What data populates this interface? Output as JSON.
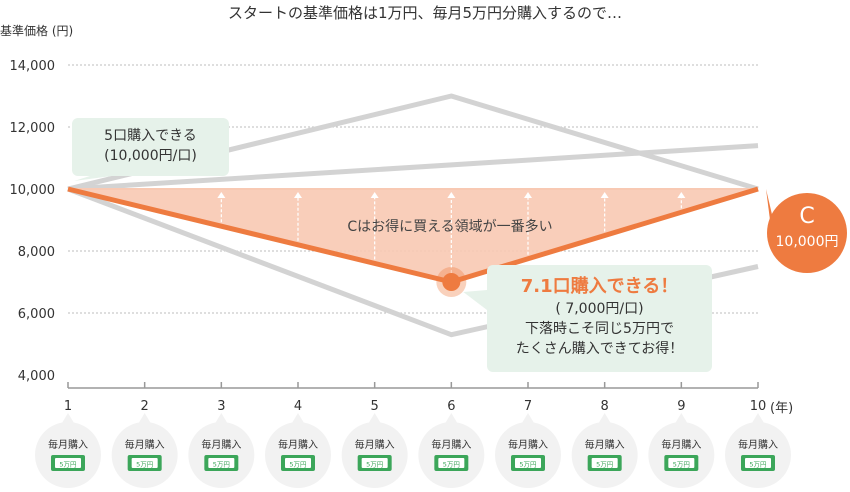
{
  "title": "スタートの基準価格は1万円、毎月5万円分購入するので…",
  "y_axis_label": "基準価格 (円)",
  "x_unit_label": "(年)",
  "area_label": "Cはお得に買える領域が一番多い",
  "callout_start": {
    "line1": "5口購入できる",
    "line2": "(10,000円/口)"
  },
  "callout_low": {
    "headline": "7.1口購入できる！",
    "line1": "( 7,000円/口)",
    "line2": "下落時こそ同じ5万円で",
    "line3": "たくさん購入できてお得！"
  },
  "badge": {
    "letter": "C",
    "price": "10,000円"
  },
  "purchase_badge": {
    "label": "毎月購入",
    "note": "5万円"
  },
  "colors": {
    "accent": "#ee7b40",
    "area_fill": "#f8c9b3",
    "gray_line": "#d3d3d3",
    "callout_bg": "#e6f2ea",
    "money_green": "#3ca65a"
  },
  "chart_data": {
    "type": "line",
    "x": [
      1,
      2,
      3,
      4,
      5,
      6,
      7,
      8,
      9,
      10
    ],
    "y_ticks": [
      "14,000",
      "12,000",
      "10,000",
      "8,000",
      "6,000",
      "4,000"
    ],
    "x_ticks": [
      "1",
      "2",
      "3",
      "4",
      "5",
      "6",
      "7",
      "8",
      "9",
      "10"
    ],
    "ylim": [
      4000,
      14000
    ],
    "xlim": [
      1,
      10
    ],
    "grid": true,
    "series": [
      {
        "id": "C",
        "role": "highlight",
        "x": [
          1,
          6,
          10
        ],
        "y": [
          10000,
          7000,
          10000
        ]
      },
      {
        "id": "up-then-down",
        "role": "comparison",
        "x": [
          1,
          6,
          10
        ],
        "y": [
          10000,
          13000,
          10000
        ]
      },
      {
        "id": "down-then-up",
        "role": "comparison",
        "x": [
          1,
          6,
          10
        ],
        "y": [
          10000,
          5300,
          7500
        ]
      },
      {
        "id": "steady-rise",
        "role": "comparison",
        "x": [
          1,
          10
        ],
        "y": [
          10000,
          11400
        ]
      }
    ],
    "baseline": 10000,
    "highlight_point": {
      "x": 6,
      "y": 7000
    }
  }
}
